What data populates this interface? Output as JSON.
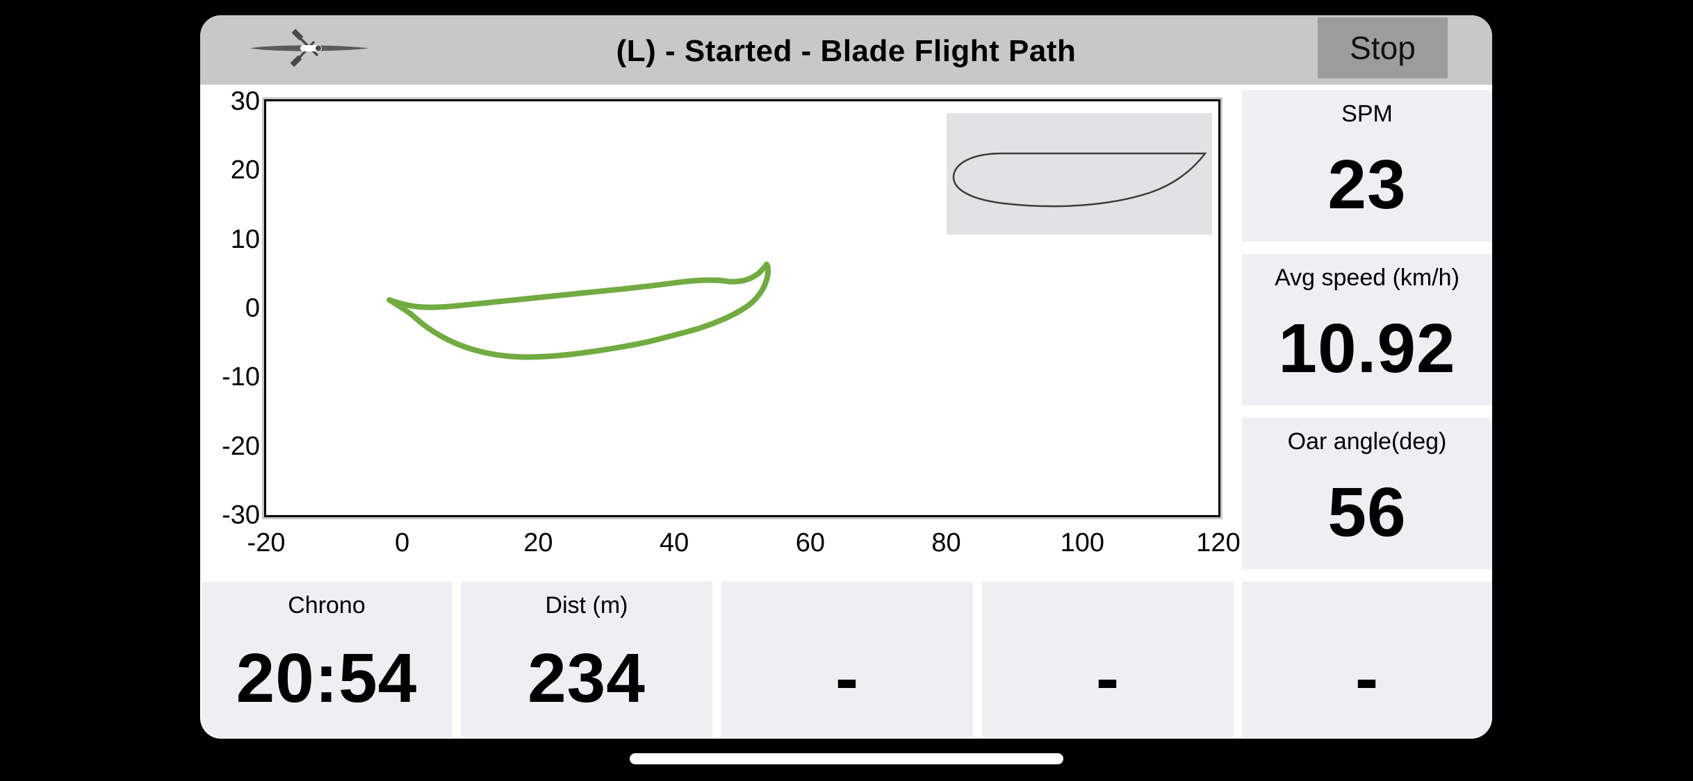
{
  "header": {
    "title": "(L) - Started - Blade Flight Path",
    "stop_button": "Stop",
    "boat_icon": "rowing-shell-top-view"
  },
  "metrics": {
    "right": [
      {
        "label": "SPM",
        "value": "23"
      },
      {
        "label": "Avg speed (km/h)",
        "value": "10.92"
      },
      {
        "label": "Oar angle(deg)",
        "value": "56"
      }
    ],
    "bottom": [
      {
        "label": "Chrono",
        "value": "20:54"
      },
      {
        "label": "Dist (m)",
        "value": "234"
      },
      {
        "label": "",
        "value": "-"
      },
      {
        "label": "",
        "value": "-"
      },
      {
        "label": "",
        "value": "-"
      }
    ]
  },
  "colors": {
    "top_bar": "#c8c8c8",
    "stop_button_bg": "#9c9c9c",
    "panel_bg": "#eeeef3",
    "inset_bg": "#e2e2e4",
    "blade_path_green": "#72ab41"
  },
  "chart_data": {
    "type": "line",
    "title": "",
    "xlabel": "",
    "ylabel": "",
    "xlim": [
      -20,
      120
    ],
    "ylim": [
      -30,
      30
    ],
    "x_ticks": [
      -20,
      0,
      20,
      40,
      60,
      80,
      100,
      120
    ],
    "y_ticks": [
      30,
      20,
      10,
      0,
      -10,
      -20,
      -30
    ],
    "grid": false,
    "legend": "none",
    "inset_note": "oar blade profile glyph, top-right",
    "series": [
      {
        "name": "blade flight path (oar angle deg vs blade height)",
        "color": "#72ab41",
        "closed": true,
        "points": [
          [
            -1.9,
            1.2
          ],
          [
            0.3,
            0.55
          ],
          [
            2.5,
            0.2
          ],
          [
            5,
            0.15
          ],
          [
            8,
            0.35
          ],
          [
            12,
            0.75
          ],
          [
            17,
            1.25
          ],
          [
            22,
            1.75
          ],
          [
            27,
            2.25
          ],
          [
            32,
            2.75
          ],
          [
            37,
            3.3
          ],
          [
            41,
            3.8
          ],
          [
            44,
            4.05
          ],
          [
            46.5,
            4.05
          ],
          [
            48.5,
            3.85
          ],
          [
            50.5,
            4.1
          ],
          [
            52.2,
            4.9
          ],
          [
            53.3,
            6.0
          ],
          [
            53.6,
            6.35
          ],
          [
            53.8,
            5.6
          ],
          [
            53.6,
            4.2
          ],
          [
            52.9,
            2.6
          ],
          [
            51.6,
            1.0
          ],
          [
            49.8,
            -0.3
          ],
          [
            47.3,
            -1.55
          ],
          [
            44,
            -2.8
          ],
          [
            40,
            -3.9
          ],
          [
            35.5,
            -5.0
          ],
          [
            30.5,
            -5.9
          ],
          [
            25.5,
            -6.6
          ],
          [
            21,
            -7.0
          ],
          [
            17,
            -7.05
          ],
          [
            13,
            -6.6
          ],
          [
            9.2,
            -5.6
          ],
          [
            6,
            -4.2
          ],
          [
            3.3,
            -2.5
          ],
          [
            1.2,
            -0.8
          ],
          [
            -0.6,
            0.4
          ],
          [
            -1.9,
            1.2
          ]
        ]
      }
    ]
  }
}
